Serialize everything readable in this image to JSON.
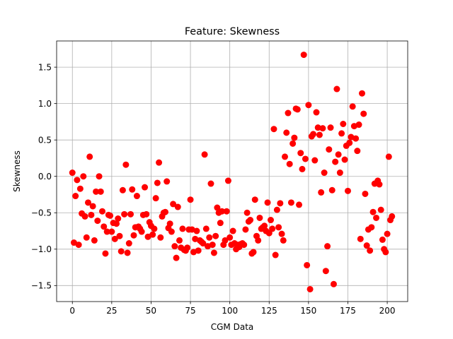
{
  "chart_data": {
    "type": "scatter",
    "title": "Feature: Skewness",
    "xlabel": "CGM Data",
    "ylabel": "Skewness",
    "xlim": [
      -10,
      213
    ],
    "ylim": [
      -1.72,
      1.86
    ],
    "xticks": [
      0,
      25,
      50,
      75,
      100,
      125,
      150,
      175,
      200
    ],
    "yticks": [
      -1.5,
      -1.0,
      -0.5,
      0.0,
      0.5,
      1.0,
      1.5
    ],
    "ytick_labels": [
      "−1.5",
      "−1.0",
      "−0.5",
      "0.0",
      "0.5",
      "1.0",
      "1.5"
    ],
    "grid": true,
    "marker_color": "#ff0000",
    "series": [
      {
        "x": [
          0,
          1,
          2,
          3,
          4,
          5,
          6,
          7,
          8,
          9,
          10,
          11,
          12,
          13,
          14,
          15,
          16,
          17,
          18,
          19,
          20,
          21,
          22,
          23,
          24,
          25,
          26,
          27,
          28,
          29,
          30,
          31,
          32,
          33,
          34,
          35,
          36,
          37,
          38,
          39,
          40,
          41,
          42,
          43,
          44,
          45,
          46,
          47,
          48,
          49,
          50,
          51,
          52,
          53,
          54,
          55,
          56,
          57,
          58,
          59,
          60,
          61,
          62,
          63,
          64,
          65,
          66,
          67,
          68,
          69,
          70,
          71,
          72,
          73,
          74,
          75,
          76,
          77,
          78,
          79,
          80,
          81,
          82,
          83,
          84,
          85,
          86,
          87,
          88,
          89,
          90,
          91,
          92,
          93,
          94,
          95,
          96,
          97,
          98,
          99,
          100,
          101,
          102,
          103,
          104,
          105,
          106,
          107,
          108,
          109,
          110,
          111,
          112,
          113,
          114,
          115,
          116,
          117,
          118,
          119,
          120,
          121,
          122,
          123,
          124,
          125,
          126,
          127,
          128,
          129,
          130,
          131,
          132,
          133,
          134,
          135,
          136,
          137,
          138,
          139,
          140,
          141,
          142,
          143,
          144,
          145,
          146,
          147,
          148,
          149,
          150,
          151,
          152,
          153,
          154,
          155,
          156,
          157,
          158,
          159,
          160,
          161,
          162,
          163,
          164,
          165,
          166,
          167,
          168,
          169,
          170,
          171,
          172,
          173,
          174,
          175,
          176,
          177,
          178,
          179,
          180,
          181,
          182,
          183,
          184,
          185,
          186,
          187,
          188,
          189,
          190,
          191,
          192,
          193,
          194,
          195,
          196,
          197,
          198,
          199,
          200,
          201,
          202,
          203
        ],
        "y": [
          0.05,
          -0.91,
          -0.27,
          -0.05,
          -0.94,
          -0.17,
          -0.51,
          0.0,
          -0.55,
          -0.84,
          -0.36,
          0.27,
          -0.53,
          -0.41,
          -0.88,
          -0.21,
          -0.61,
          0.0,
          -0.21,
          -0.48,
          -0.69,
          -1.06,
          -0.76,
          -0.53,
          -0.54,
          -0.76,
          -0.64,
          -0.86,
          -0.65,
          -0.58,
          -0.82,
          -1.03,
          -0.19,
          -0.52,
          0.16,
          -1.05,
          -0.92,
          -0.52,
          -0.18,
          -0.81,
          -0.7,
          -0.27,
          -0.69,
          -0.72,
          -0.76,
          -0.53,
          -0.15,
          -0.52,
          -0.83,
          -0.63,
          -0.68,
          -0.8,
          -0.72,
          -0.3,
          -0.09,
          0.19,
          -0.84,
          -0.55,
          -0.5,
          -0.49,
          -0.07,
          -0.71,
          -0.65,
          -0.76,
          -0.38,
          -0.96,
          -1.12,
          -0.42,
          -0.88,
          -0.98,
          -0.72,
          -1.01,
          -1.02,
          -0.98,
          -0.73,
          -0.32,
          -0.73,
          -1.04,
          -0.86,
          -0.75,
          -1.02,
          -0.88,
          -0.9,
          -0.92,
          0.3,
          -0.72,
          -0.96,
          -0.84,
          -0.1,
          -0.94,
          -1.05,
          -0.82,
          -0.43,
          -0.5,
          -0.64,
          -0.48,
          -0.94,
          -0.88,
          -0.48,
          -0.06,
          -0.84,
          -0.94,
          -0.75,
          -0.92,
          -1.0,
          -0.94,
          -0.97,
          -0.93,
          -0.92,
          -0.94,
          -0.73,
          -0.5,
          -0.62,
          -0.6,
          -1.06,
          -1.04,
          -0.32,
          -0.82,
          -0.88,
          -0.57,
          -0.72,
          -0.7,
          -0.68,
          -0.75,
          -0.36,
          -0.78,
          -0.6,
          -0.72,
          0.65,
          -1.08,
          -0.46,
          -0.7,
          -0.37,
          -0.79,
          -0.88,
          0.27,
          0.6,
          0.87,
          0.17,
          -0.36,
          0.45,
          0.53,
          0.93,
          0.92,
          -0.39,
          0.32,
          0.1,
          1.67,
          0.24,
          -1.22,
          0.98,
          -1.55,
          0.55,
          0.58,
          0.22,
          0.88,
          0.67,
          0.57,
          -0.22,
          0.66,
          0.05,
          -1.3,
          -0.96,
          0.37,
          0.67,
          -0.19,
          -1.48,
          0.2,
          1.2,
          0.3,
          0.05,
          0.59,
          0.72,
          0.23,
          0.42,
          -0.2,
          0.46,
          0.54,
          0.96,
          0.69,
          0.52,
          0.35,
          0.71,
          -0.86,
          1.14,
          0.86,
          -0.24,
          -0.95,
          -0.73,
          -1.02,
          -0.7,
          -0.49,
          -0.1,
          -0.57,
          -0.06,
          -0.11,
          -0.46,
          -0.87,
          -1.0,
          -1.04,
          -0.79,
          0.27,
          -0.6,
          -0.55
        ]
      }
    ]
  }
}
